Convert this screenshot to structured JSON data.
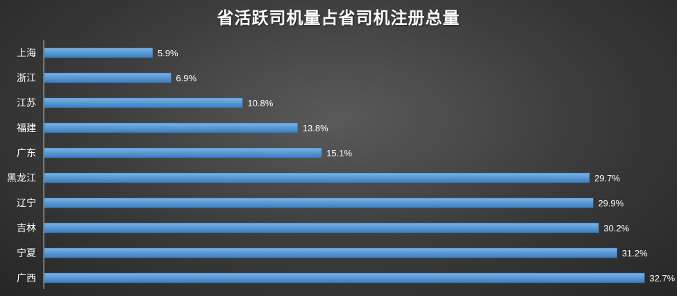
{
  "chart_data": {
    "type": "bar",
    "orientation": "horizontal",
    "title": "省活跃司机量占省司机注册总量",
    "categories": [
      "上海",
      "浙江",
      "江苏",
      "福建",
      "广东",
      "黑龙江",
      "辽宁",
      "吉林",
      "宁夏",
      "广西"
    ],
    "values": [
      5.9,
      6.9,
      10.8,
      13.8,
      15.1,
      29.7,
      29.9,
      30.2,
      31.2,
      32.7
    ],
    "value_labels": [
      "5.9%",
      "6.9%",
      "10.8%",
      "13.8%",
      "15.1%",
      "29.7%",
      "29.9%",
      "30.2%",
      "31.2%",
      "32.7%"
    ],
    "xlim": [
      0,
      34.2
    ],
    "grid": false,
    "legend": "none",
    "bar_color": "#5b9bd5",
    "bar_edge_color": "#2e6da4",
    "background_color": "#404040",
    "text_color": "#ffffff"
  }
}
